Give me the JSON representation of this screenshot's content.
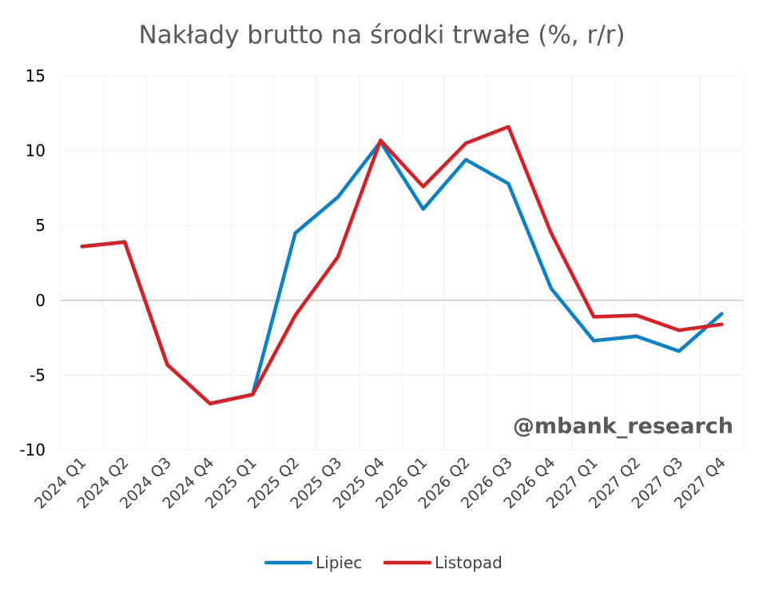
{
  "chart_data": {
    "type": "line",
    "title": "Nakłady brutto na środki trwałe (%, r/r)",
    "xlabel": "",
    "ylabel": "",
    "categories": [
      "2024 Q1",
      "2024 Q2",
      "2024 Q3",
      "2024 Q4",
      "2025 Q1",
      "2025 Q2",
      "2025 Q3",
      "2025 Q4",
      "2026 Q1",
      "2026 Q2",
      "2026 Q3",
      "2026 Q4",
      "2027 Q1",
      "2027 Q2",
      "2027 Q3",
      "2027 Q4"
    ],
    "ylim": [
      -10,
      15
    ],
    "yticks": [
      "15",
      "10",
      "5",
      "0",
      "-5",
      "-10"
    ],
    "grid": true,
    "legend_position": "bottom",
    "series": [
      {
        "name": "Lipiec",
        "color": "#0a82c8",
        "values": [
          3.6,
          3.9,
          -4.3,
          -6.9,
          -6.3,
          4.5,
          6.9,
          10.6,
          6.1,
          9.4,
          7.8,
          0.8,
          -2.7,
          -2.4,
          -3.4,
          -0.9
        ]
      },
      {
        "name": "Listopad",
        "color": "#dc1e23",
        "values": [
          3.6,
          3.9,
          -4.3,
          -6.9,
          -6.3,
          -1.0,
          2.9,
          10.7,
          7.6,
          10.5,
          11.6,
          4.5,
          -1.1,
          -1.0,
          -2.0,
          -1.6
        ]
      }
    ]
  },
  "watermark": "@mbank_research"
}
